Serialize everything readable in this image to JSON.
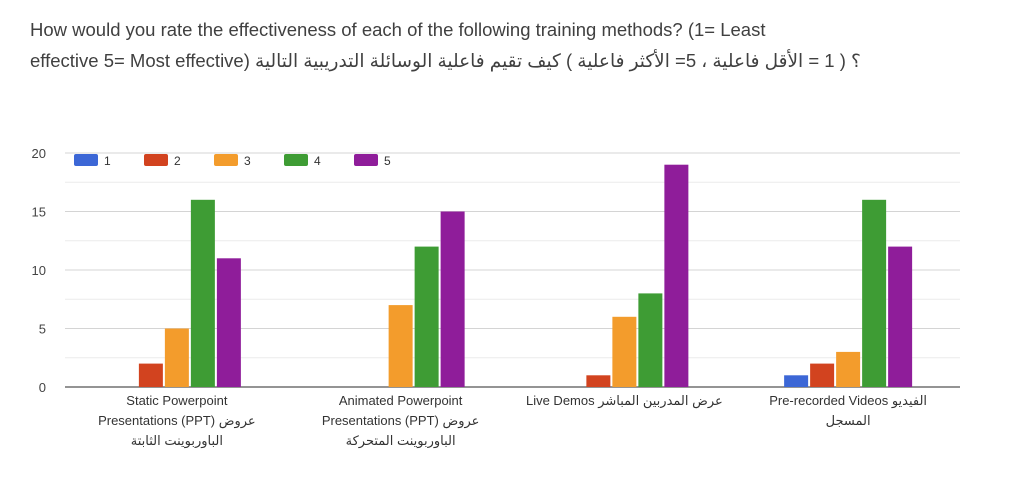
{
  "page_title_lines": [
    "How would you rate the effectiveness of each of the following training methods? (1= Least",
    "effective 5= Most effective) ؟ ( 1 = الأقل فاعلية ، 5= الأكثر فاعلية ) كيف تقيم فاعلية الوسائلة التدريبية التالية"
  ],
  "colors": {
    "series": [
      "#3c67d6",
      "#d2431f",
      "#f39c2c",
      "#3e9c34",
      "#8f1d9a"
    ],
    "grid": "#e0e0e0",
    "axis": "#555555"
  },
  "chart_data": {
    "type": "bar",
    "title": "",
    "xlabel": "",
    "ylabel": "",
    "ylim": [
      0,
      20
    ],
    "yticks": [
      0,
      5,
      10,
      15,
      20
    ],
    "grid": true,
    "legend_position": "top-left",
    "categories": [
      [
        "Static Powerpoint",
        "Presentations (PPT) عروض",
        "الباوربوينت الثابتة"
      ],
      [
        "Animated Powerpoint",
        "Presentations (PPT) عروض",
        "الباوربوينت المتحركة"
      ],
      [
        "Live Demos  عرض المدربين المباشر"
      ],
      [
        "Pre-recorded Videos  الفيديو",
        "المسجل"
      ]
    ],
    "series": [
      {
        "name": "1",
        "values": [
          0,
          0,
          0,
          1
        ]
      },
      {
        "name": "2",
        "values": [
          2,
          0,
          1,
          2
        ]
      },
      {
        "name": "3",
        "values": [
          5,
          7,
          6,
          3
        ]
      },
      {
        "name": "4",
        "values": [
          16,
          12,
          8,
          16
        ]
      },
      {
        "name": "5",
        "values": [
          11,
          15,
          19,
          12
        ]
      }
    ]
  }
}
